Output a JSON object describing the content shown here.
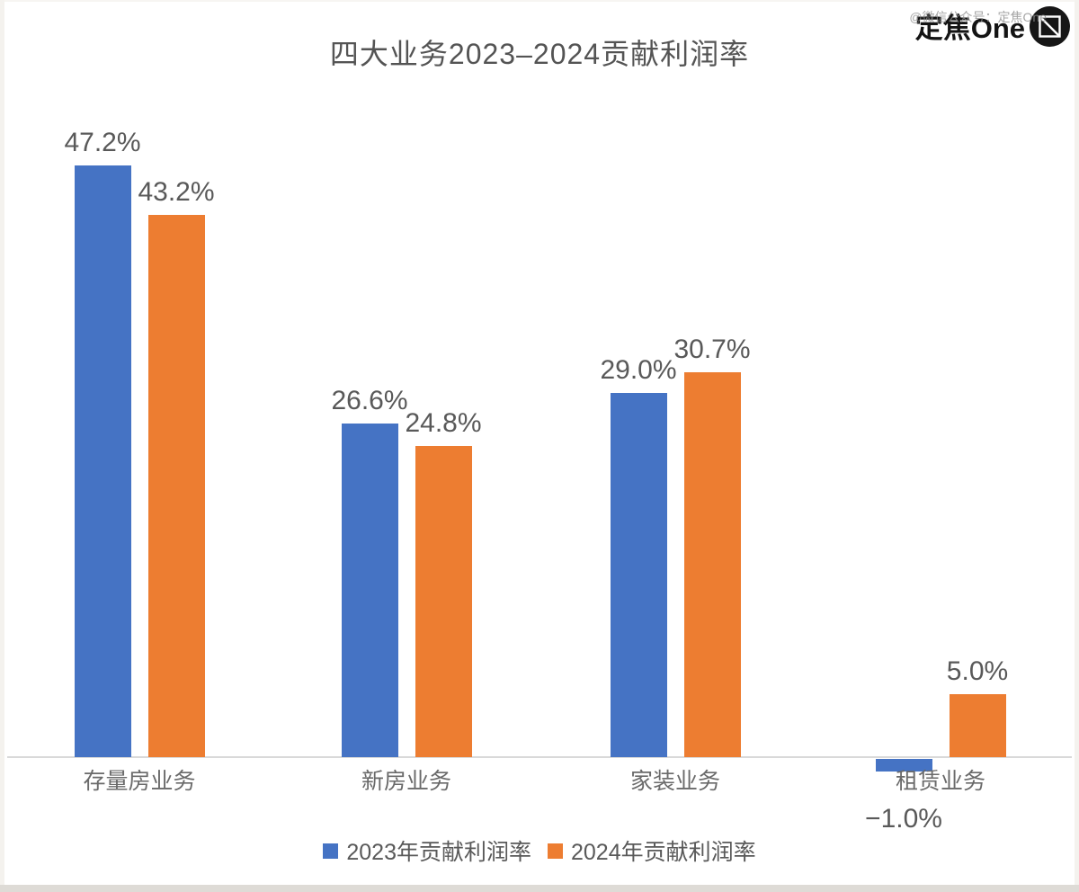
{
  "watermark": {
    "text": "@微信公众号：定焦One"
  },
  "logo": {
    "text": "定焦One",
    "icon": "focus-frame-icon"
  },
  "chart_data": {
    "type": "bar",
    "title": "四大业务2023–2024贡献利润率",
    "categories": [
      "存量房业务",
      "新房业务",
      "家装业务",
      "租赁业务"
    ],
    "series": [
      {
        "name": "2023年贡献利润率",
        "color": "#4573C4",
        "values": [
          47.2,
          26.6,
          29.0,
          -1.0
        ],
        "data_labels": [
          "47.2%",
          "26.6%",
          "29.0%",
          "−1.0%"
        ]
      },
      {
        "name": "2024年贡献利润率",
        "color": "#ED7D31",
        "values": [
          43.2,
          24.8,
          30.7,
          5.0
        ],
        "data_labels": [
          "43.2%",
          "24.8%",
          "30.7%",
          "5.0%"
        ]
      }
    ],
    "ylim": [
      -5,
      52
    ],
    "grid": false,
    "y_axis_labels_visible": false,
    "legend_position": "bottom",
    "axis": {
      "line_color": "#D9D9D9",
      "baseline_value": 0
    },
    "label_color": "#595959",
    "category_label_color": "#6A6A6A"
  }
}
